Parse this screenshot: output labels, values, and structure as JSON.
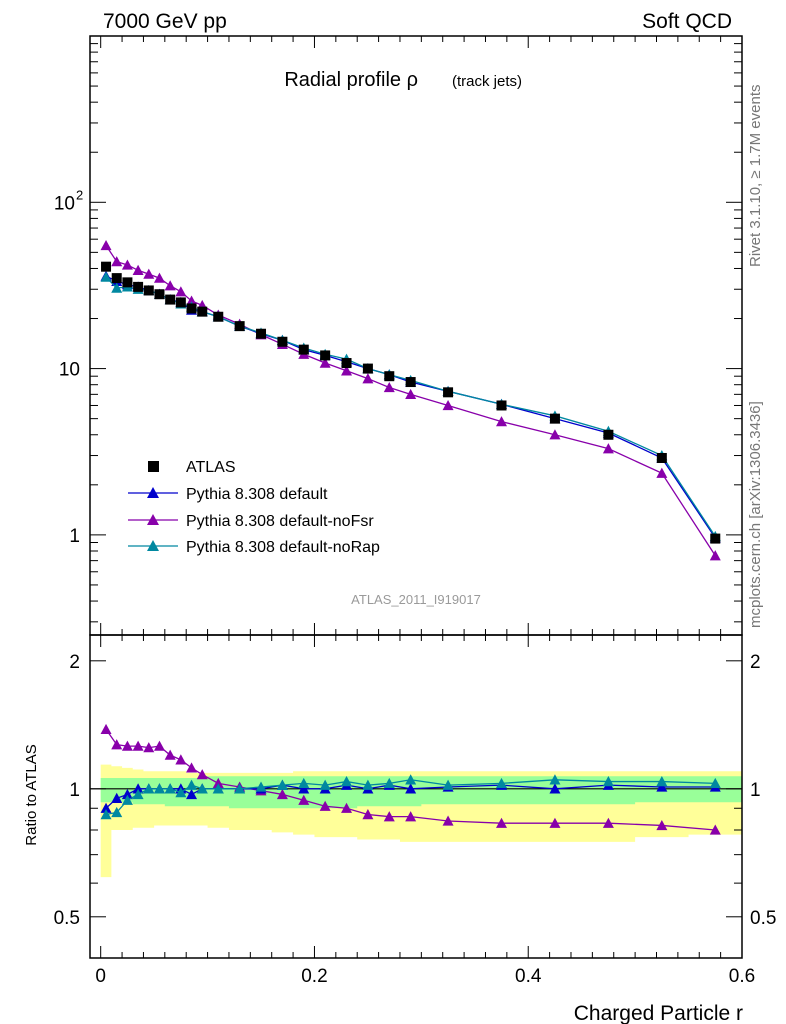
{
  "header": {
    "left": "7000 GeV pp",
    "right": "Soft QCD"
  },
  "side_text": {
    "top": "Rivet 3.1.10, ≥ 1.7M events",
    "bottom": "mcplots.cern.ch [arXiv:1306.3436]"
  },
  "watermark": "ATLAS_2011_I919017",
  "chart_data": {
    "type": "line",
    "title": "Radial profile ρ",
    "title_suffix": "(track jets)",
    "xlabel": "Charged Particle r",
    "ylabel_ratio": "Ratio to ATLAS",
    "xlim": [
      -0.01,
      0.6
    ],
    "ylim": [
      0.25,
      1000
    ],
    "ratio_ylim": [
      0.4,
      2.3
    ],
    "yscale": "log",
    "ratio_yscale": "log",
    "x_ticks": [
      "0",
      "0.2",
      "0.4",
      "0.6"
    ],
    "y_ticks": [
      "1",
      "10",
      "10^2"
    ],
    "ratio_y_ticks": [
      "0.5",
      "1",
      "2"
    ],
    "legend_position": "bottom-left",
    "colors": {
      "ATLAS": "#000000",
      "default": "#0000cc",
      "noFsr": "#8800aa",
      "noRap": "#0088a0",
      "band_inner": "#99ff99",
      "band_outer": "#ffff99"
    },
    "x": [
      0.005,
      0.015,
      0.025,
      0.035,
      0.045,
      0.055,
      0.065,
      0.075,
      0.085,
      0.095,
      0.11,
      0.13,
      0.15,
      0.17,
      0.19,
      0.21,
      0.23,
      0.25,
      0.27,
      0.29,
      0.325,
      0.375,
      0.425,
      0.475,
      0.525,
      0.575
    ],
    "x_edges": [
      0.0,
      0.01,
      0.02,
      0.03,
      0.04,
      0.05,
      0.06,
      0.07,
      0.08,
      0.09,
      0.1,
      0.12,
      0.14,
      0.16,
      0.18,
      0.2,
      0.22,
      0.24,
      0.26,
      0.28,
      0.3,
      0.35,
      0.4,
      0.45,
      0.5,
      0.55,
      0.6
    ],
    "band_outer": {
      "low": [
        0.62,
        0.8,
        0.8,
        0.81,
        0.81,
        0.82,
        0.82,
        0.82,
        0.82,
        0.82,
        0.81,
        0.8,
        0.8,
        0.79,
        0.78,
        0.77,
        0.77,
        0.76,
        0.76,
        0.75,
        0.75,
        0.75,
        0.75,
        0.75,
        0.77,
        0.78
      ],
      "high": [
        1.14,
        1.13,
        1.12,
        1.11,
        1.1,
        1.1,
        1.1,
        1.1,
        1.09,
        1.09,
        1.09,
        1.09,
        1.09,
        1.09,
        1.1,
        1.1,
        1.1,
        1.1,
        1.1,
        1.1,
        1.1,
        1.1,
        1.1,
        1.1,
        1.1,
        1.1
      ]
    },
    "band_inner": {
      "low": [
        0.93,
        0.93,
        0.93,
        0.92,
        0.92,
        0.92,
        0.91,
        0.91,
        0.91,
        0.91,
        0.91,
        0.9,
        0.9,
        0.9,
        0.9,
        0.9,
        0.9,
        0.91,
        0.91,
        0.91,
        0.92,
        0.92,
        0.92,
        0.92,
        0.93,
        0.93
      ],
      "high": [
        1.06,
        1.06,
        1.06,
        1.06,
        1.06,
        1.06,
        1.06,
        1.06,
        1.06,
        1.06,
        1.07,
        1.07,
        1.07,
        1.07,
        1.07,
        1.07,
        1.07,
        1.07,
        1.07,
        1.07,
        1.07,
        1.07,
        1.07,
        1.07,
        1.07,
        1.07
      ]
    },
    "series": [
      {
        "name": "ATLAS",
        "marker": "square",
        "line": false,
        "values": [
          41.0,
          35.0,
          33.0,
          31.0,
          29.5,
          28.0,
          26.0,
          25.0,
          23.0,
          22.0,
          20.5,
          18.0,
          16.2,
          14.5,
          13.0,
          12.0,
          10.8,
          10.0,
          9.0,
          8.3,
          7.2,
          6.0,
          5.0,
          4.0,
          2.9,
          0.95
        ]
      },
      {
        "name": "Pythia 8.308 default",
        "marker": "triangle",
        "line": true,
        "values": [
          36.0,
          33.5,
          32.0,
          31.0,
          29.5,
          28.0,
          26.0,
          25.0,
          22.5,
          22.0,
          20.5,
          18.0,
          16.2,
          14.8,
          13.0,
          12.0,
          11.0,
          10.0,
          9.2,
          8.3,
          7.3,
          6.1,
          5.0,
          4.1,
          2.9,
          0.96
        ]
      },
      {
        "name": "Pythia 8.308 default-noFsr",
        "marker": "triangle",
        "line": true,
        "values": [
          55.0,
          44.0,
          42.0,
          39.0,
          37.0,
          35.0,
          31.5,
          29.0,
          25.5,
          24.0,
          21.0,
          18.5,
          16.0,
          14.0,
          12.2,
          10.8,
          9.7,
          8.7,
          7.7,
          7.0,
          6.0,
          4.8,
          4.0,
          3.3,
          2.35,
          0.75
        ]
      },
      {
        "name": "Pythia 8.308 default-noRap",
        "marker": "triangle",
        "line": true,
        "values": [
          35.5,
          30.5,
          31.0,
          30.0,
          29.5,
          28.0,
          26.0,
          24.5,
          23.5,
          22.0,
          20.5,
          18.0,
          16.4,
          14.8,
          13.3,
          12.2,
          11.4,
          10.0,
          9.2,
          8.5,
          7.3,
          6.1,
          5.2,
          4.2,
          3.0,
          0.98
        ]
      }
    ],
    "ratios": {
      "Pythia 8.308 default": [
        0.9,
        0.95,
        0.97,
        1.0,
        1.0,
        1.0,
        1.0,
        1.0,
        0.97,
        1.0,
        1.0,
        1.0,
        1.0,
        1.02,
        1.0,
        1.0,
        1.02,
        1.0,
        1.02,
        1.0,
        1.01,
        1.02,
        1.0,
        1.02,
        1.01,
        1.01
      ],
      "Pythia 8.308 default-noFsr": [
        1.38,
        1.27,
        1.26,
        1.26,
        1.25,
        1.26,
        1.2,
        1.17,
        1.12,
        1.08,
        1.03,
        1.01,
        0.99,
        0.97,
        0.94,
        0.91,
        0.9,
        0.87,
        0.86,
        0.86,
        0.84,
        0.83,
        0.83,
        0.83,
        0.82,
        0.8
      ],
      "Pythia 8.308 default-noRap": [
        0.87,
        0.88,
        0.94,
        0.97,
        1.0,
        1.0,
        1.0,
        0.98,
        1.02,
        1.0,
        1.0,
        1.0,
        1.01,
        1.02,
        1.03,
        1.02,
        1.04,
        1.02,
        1.03,
        1.05,
        1.02,
        1.03,
        1.05,
        1.04,
        1.04,
        1.03
      ]
    }
  }
}
